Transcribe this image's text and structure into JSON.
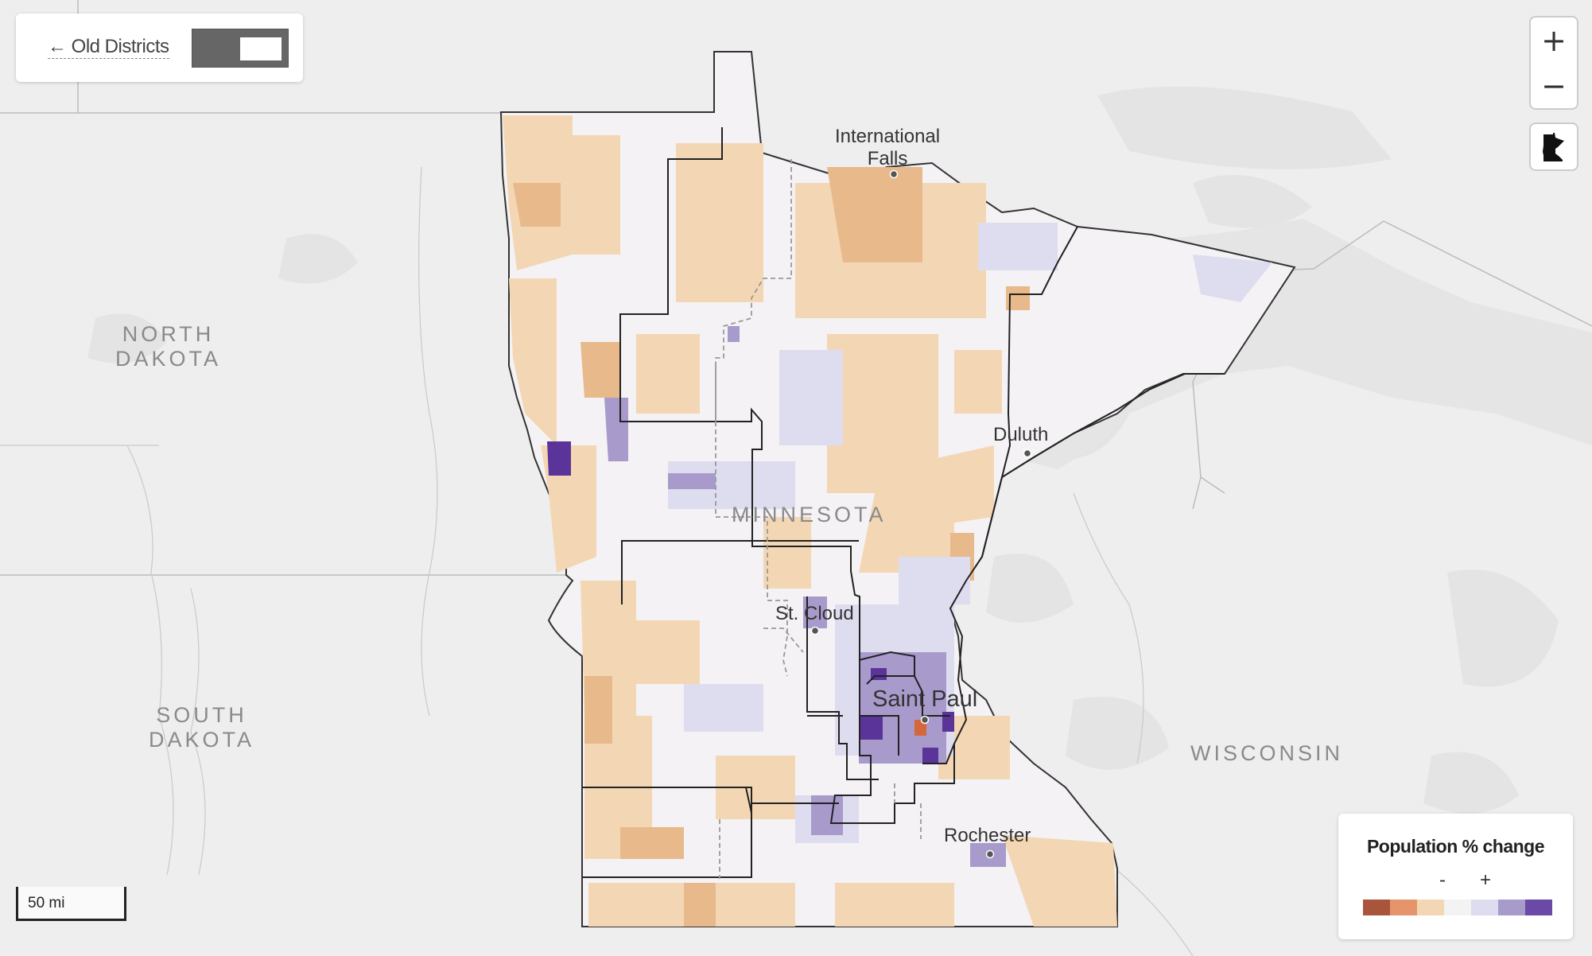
{
  "toggle": {
    "link_label": "← Old Districts"
  },
  "zoom": {
    "in_label": "+",
    "out_label": "−"
  },
  "scale": {
    "label": "50 mi"
  },
  "legend": {
    "title": "Population % change",
    "minus_label": "-",
    "plus_label": "+",
    "colors": [
      "#a8553b",
      "#e5946b",
      "#f3d7b5",
      "#f3f3f3",
      "#dedcef",
      "#a89bcc",
      "#6a4aa6"
    ]
  },
  "regions": {
    "north_dakota": "NORTH\nDAKOTA",
    "south_dakota": "SOUTH\nDAKOTA",
    "minnesota": "MINNESOTA",
    "wisconsin": "WISCONSIN"
  },
  "cities": {
    "international_falls": "International\nFalls",
    "duluth": "Duluth",
    "st_cloud": "St. Cloud",
    "saint_paul": "Saint Paul",
    "rochester": "Rochester"
  },
  "colors": {
    "background": "#eeeeee",
    "state_fill": "#f4f2f4",
    "orange_light": "#f3d7b5",
    "orange": "#e8b98b",
    "purple_light": "#dedcef",
    "purple": "#a89bcc",
    "purple_dark": "#5a3498"
  }
}
